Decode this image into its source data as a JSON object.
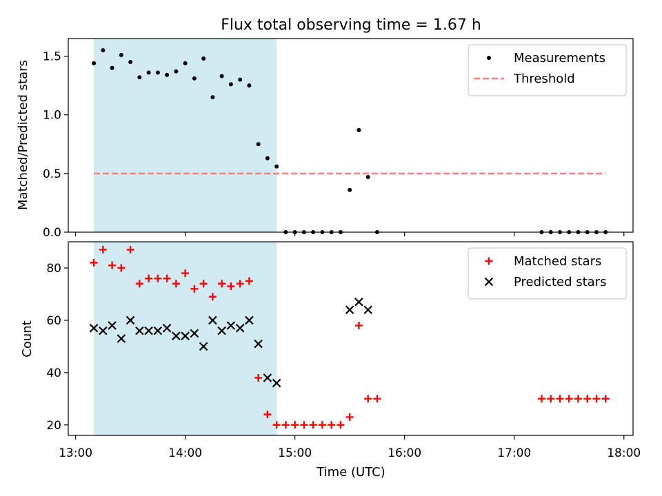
{
  "chart_data": [
    {
      "type": "scatter",
      "title": "Flux total observing time = 1.67 h",
      "xlabel": "",
      "ylabel": "Matched/Predicted stars",
      "xlim": [
        "12:56",
        "18:05"
      ],
      "ylim": [
        0,
        1.65
      ],
      "yticks": [
        0.0,
        0.5,
        1.0,
        1.5
      ],
      "ytick_labels": [
        "0.0",
        "0.5",
        "1.0",
        "1.5"
      ],
      "shaded_region": {
        "x_start": "13:10",
        "x_end": "14:50",
        "color": "#add8e6"
      },
      "threshold": {
        "name": "Threshold",
        "y": 0.5,
        "x_start": "13:10",
        "x_end": "17:50",
        "color": "#ff7f7f"
      },
      "legend": {
        "placement": "top-right",
        "entries": [
          "Measurements",
          "Threshold"
        ]
      },
      "series": [
        {
          "name": "Measurements",
          "color": "#000000",
          "marker": "dot",
          "points": [
            [
              "13:10",
              1.44
            ],
            [
              "13:15",
              1.55
            ],
            [
              "13:20",
              1.4
            ],
            [
              "13:25",
              1.51
            ],
            [
              "13:30",
              1.45
            ],
            [
              "13:35",
              1.32
            ],
            [
              "13:40",
              1.36
            ],
            [
              "13:45",
              1.36
            ],
            [
              "13:50",
              1.34
            ],
            [
              "13:55",
              1.37
            ],
            [
              "14:00",
              1.44
            ],
            [
              "14:05",
              1.31
            ],
            [
              "14:10",
              1.48
            ],
            [
              "14:15",
              1.15
            ],
            [
              "14:20",
              1.33
            ],
            [
              "14:25",
              1.26
            ],
            [
              "14:30",
              1.3
            ],
            [
              "14:35",
              1.25
            ],
            [
              "14:40",
              0.75
            ],
            [
              "14:45",
              0.63
            ],
            [
              "14:50",
              0.56
            ],
            [
              "14:55",
              0.0
            ],
            [
              "15:00",
              0.0
            ],
            [
              "15:05",
              0.0
            ],
            [
              "15:10",
              0.0
            ],
            [
              "15:15",
              0.0
            ],
            [
              "15:20",
              0.0
            ],
            [
              "15:25",
              0.0
            ],
            [
              "15:30",
              0.36
            ],
            [
              "15:35",
              0.87
            ],
            [
              "15:40",
              0.47
            ],
            [
              "15:45",
              0.0
            ],
            [
              "17:15",
              0.0
            ],
            [
              "17:20",
              0.0
            ],
            [
              "17:25",
              0.0
            ],
            [
              "17:30",
              0.0
            ],
            [
              "17:35",
              0.0
            ],
            [
              "17:40",
              0.0
            ],
            [
              "17:45",
              0.0
            ],
            [
              "17:50",
              0.0
            ]
          ]
        }
      ]
    },
    {
      "type": "scatter",
      "title": "",
      "xlabel": "Time (UTC)",
      "ylabel": "Count",
      "xlim": [
        "12:56",
        "18:05"
      ],
      "ylim": [
        16,
        90
      ],
      "yticks": [
        20,
        40,
        60,
        80
      ],
      "ytick_labels": [
        "20",
        "40",
        "60",
        "80"
      ],
      "xticks": [
        "13:00",
        "14:00",
        "15:00",
        "16:00",
        "17:00",
        "18:00"
      ],
      "xtick_labels": [
        "13:00",
        "14:00",
        "15:00",
        "16:00",
        "17:00",
        "18:00"
      ],
      "shaded_region": {
        "x_start": "13:10",
        "x_end": "14:50",
        "color": "#add8e6"
      },
      "legend": {
        "placement": "top-right",
        "entries": [
          "Matched stars",
          "Predicted stars"
        ]
      },
      "series": [
        {
          "name": "Matched stars",
          "color": "#ff0000",
          "marker": "plus",
          "points": [
            [
              "13:10",
              82
            ],
            [
              "13:15",
              87
            ],
            [
              "13:20",
              81
            ],
            [
              "13:25",
              80
            ],
            [
              "13:30",
              87
            ],
            [
              "13:35",
              74
            ],
            [
              "13:40",
              76
            ],
            [
              "13:45",
              76
            ],
            [
              "13:50",
              76
            ],
            [
              "13:55",
              74
            ],
            [
              "14:00",
              78
            ],
            [
              "14:05",
              72
            ],
            [
              "14:10",
              74
            ],
            [
              "14:15",
              69
            ],
            [
              "14:20",
              74
            ],
            [
              "14:25",
              73
            ],
            [
              "14:30",
              74
            ],
            [
              "14:35",
              75
            ],
            [
              "14:40",
              38
            ],
            [
              "14:45",
              24
            ],
            [
              "14:50",
              20
            ],
            [
              "14:55",
              20
            ],
            [
              "15:00",
              20
            ],
            [
              "15:05",
              20
            ],
            [
              "15:10",
              20
            ],
            [
              "15:15",
              20
            ],
            [
              "15:20",
              20
            ],
            [
              "15:25",
              20
            ],
            [
              "15:30",
              23
            ],
            [
              "15:35",
              58
            ],
            [
              "15:40",
              30
            ],
            [
              "15:45",
              30
            ],
            [
              "17:15",
              30
            ],
            [
              "17:20",
              30
            ],
            [
              "17:25",
              30
            ],
            [
              "17:30",
              30
            ],
            [
              "17:35",
              30
            ],
            [
              "17:40",
              30
            ],
            [
              "17:45",
              30
            ],
            [
              "17:50",
              30
            ]
          ]
        },
        {
          "name": "Predicted stars",
          "color": "#000000",
          "marker": "x",
          "points": [
            [
              "13:10",
              57
            ],
            [
              "13:15",
              56
            ],
            [
              "13:20",
              58
            ],
            [
              "13:25",
              53
            ],
            [
              "13:30",
              60
            ],
            [
              "13:35",
              56
            ],
            [
              "13:40",
              56
            ],
            [
              "13:45",
              56
            ],
            [
              "13:50",
              57
            ],
            [
              "13:55",
              54
            ],
            [
              "14:00",
              54
            ],
            [
              "14:05",
              55
            ],
            [
              "14:10",
              50
            ],
            [
              "14:15",
              60
            ],
            [
              "14:20",
              56
            ],
            [
              "14:25",
              58
            ],
            [
              "14:30",
              57
            ],
            [
              "14:35",
              60
            ],
            [
              "14:40",
              51
            ],
            [
              "14:45",
              38
            ],
            [
              "14:50",
              36
            ],
            [
              "15:30",
              64
            ],
            [
              "15:35",
              67
            ],
            [
              "15:40",
              64
            ]
          ]
        }
      ]
    }
  ]
}
